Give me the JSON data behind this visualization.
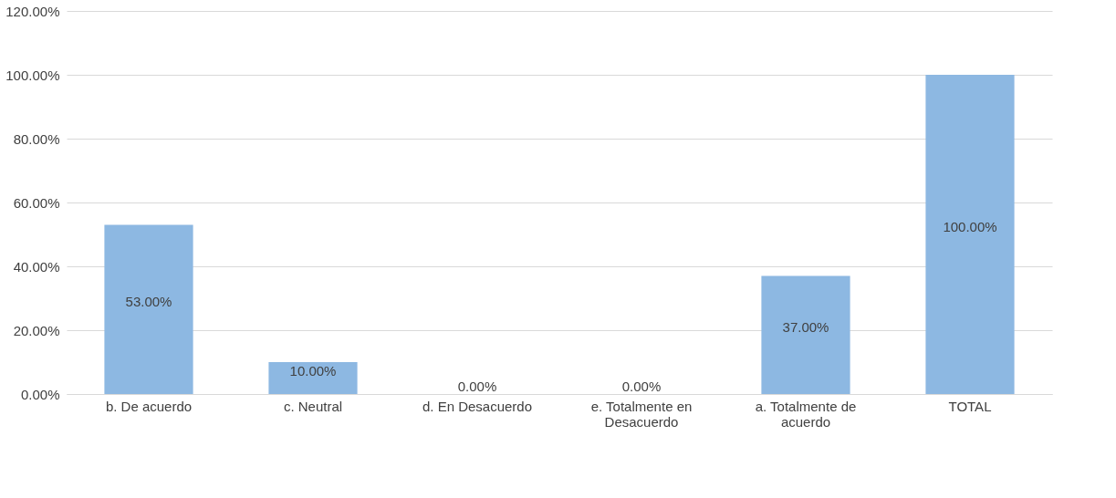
{
  "chart_data": {
    "type": "bar",
    "categories": [
      "b. De acuerdo",
      "c. Neutral",
      "d. En Desacuerdo",
      "e. Totalmente en Desacuerdo",
      "a. Totalmente de acuerdo",
      "TOTAL"
    ],
    "values": [
      53,
      10,
      0,
      0,
      37,
      100
    ],
    "value_labels": [
      "53.00%",
      "10.00%",
      "0.00%",
      "0.00%",
      "37.00%",
      "100.00%"
    ],
    "color": "#8db8e2",
    "ylim": [
      0,
      120
    ],
    "yticks": [
      {
        "value": 0,
        "label": "0.00%"
      },
      {
        "value": 20,
        "label": "20.00%"
      },
      {
        "value": 40,
        "label": "40.00%"
      },
      {
        "value": 60,
        "label": "60.00%"
      },
      {
        "value": 80,
        "label": "80.00%"
      },
      {
        "value": 100,
        "label": "100.00%"
      },
      {
        "value": 120,
        "label": "120.00%"
      }
    ],
    "grid": "y"
  }
}
